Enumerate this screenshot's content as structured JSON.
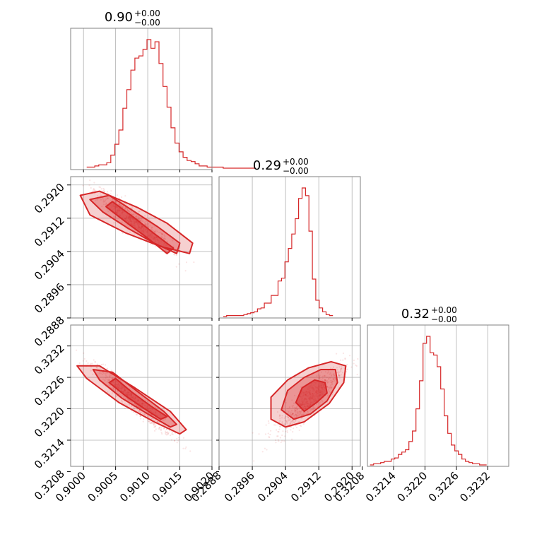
{
  "chart_data": {
    "type": "corner",
    "color": "#d62728",
    "grid": true,
    "parameters": [
      {
        "title_value": "0.90",
        "title_plus": "+0.00",
        "title_minus": "−0.00",
        "range": [
          0.8998,
          0.902
        ],
        "ticks": [
          0.9,
          0.9005,
          0.901,
          0.9015,
          0.902
        ],
        "tick_labels": [
          "0.9000",
          "0.9005",
          "0.9010",
          "0.9015",
          "0.9020"
        ],
        "histogram": {
          "bin_start": 0.90005,
          "bin_width": 6.25e-05,
          "counts": [
            1,
            1,
            2,
            3,
            3,
            5,
            12,
            22,
            35,
            55,
            72,
            90,
            101,
            103,
            109,
            118,
            110,
            116,
            96,
            75,
            56,
            37,
            23,
            15,
            10,
            7,
            6,
            4,
            2,
            2,
            1,
            1,
            1,
            1,
            0,
            0,
            0,
            0,
            0,
            0,
            0,
            0
          ]
        }
      },
      {
        "title_value": "0.29",
        "title_plus": "+0.00",
        "title_minus": "−0.00",
        "range": [
          0.2888,
          0.2922
        ],
        "ticks": [
          0.2888,
          0.2896,
          0.2904,
          0.2912,
          0.292
        ],
        "tick_labels": [
          "0.2888",
          "0.2896",
          "0.2904",
          "0.2912",
          "0.2920"
        ],
        "histogram": {
          "bin_start": 0.2889,
          "bin_width": 8.25e-05,
          "counts": [
            0,
            1,
            1,
            1,
            1,
            1,
            2,
            3,
            4,
            5,
            8,
            9,
            14,
            14,
            22,
            22,
            37,
            40,
            57,
            71,
            86,
            102,
            123,
            134,
            126,
            89,
            39,
            17,
            9,
            5,
            2,
            1
          ]
        }
      },
      {
        "title_value": "0.32",
        "title_plus": "+0.00",
        "title_minus": "−0.00",
        "range": [
          0.3209,
          0.3236
        ],
        "ticks": [
          0.3208,
          0.3214,
          0.322,
          0.3226,
          0.3232
        ],
        "tick_labels": [
          "0.3208",
          "0.3214",
          "0.3220",
          "0.3226",
          "0.3232"
        ],
        "histogram": {
          "bin_start": 0.32095,
          "bin_width": 6.75e-05,
          "counts": [
            0,
            1,
            1,
            2,
            3,
            3,
            5,
            6,
            9,
            11,
            13,
            20,
            29,
            48,
            72,
            104,
            110,
            96,
            94,
            84,
            65,
            42,
            27,
            17,
            12,
            9,
            5,
            3,
            2,
            1,
            1,
            0,
            0
          ]
        }
      }
    ],
    "pairs": [
      {
        "row": 1,
        "col": 0,
        "corr": -0.94,
        "mean": [
          0.90078,
          0.29116
        ],
        "sd": [
          0.00022,
          0.00028
        ],
        "contours": [
          [
            [
              0.9013,
              0.29035
            ],
            [
              0.901,
              0.29072
            ],
            [
              0.9007,
              0.29106
            ],
            [
              0.90035,
              0.29148
            ],
            [
              0.90045,
              0.2916
            ],
            [
              0.9008,
              0.2912
            ],
            [
              0.9011,
              0.29083
            ],
            [
              0.9014,
              0.29048
            ]
          ],
          [
            [
              0.90145,
              0.29035
            ],
            [
              0.9011,
              0.2906
            ],
            [
              0.9007,
              0.29095
            ],
            [
              0.9003,
              0.29135
            ],
            [
              0.9001,
              0.29165
            ],
            [
              0.9004,
              0.29175
            ],
            [
              0.9008,
              0.29135
            ],
            [
              0.90115,
              0.291
            ],
            [
              0.9015,
              0.2906
            ]
          ],
          [
            [
              0.90165,
              0.29035
            ],
            [
              0.9012,
              0.29052
            ],
            [
              0.90065,
              0.29085
            ],
            [
              0.9001,
              0.29128
            ],
            [
              0.89995,
              0.29175
            ],
            [
              0.90025,
              0.29185
            ],
            [
              0.90085,
              0.29145
            ],
            [
              0.9013,
              0.29108
            ],
            [
              0.9017,
              0.2906
            ]
          ]
        ]
      },
      {
        "row": 2,
        "col": 0,
        "corr": -0.96,
        "mean": [
          0.90078,
          0.32215
        ],
        "sd": [
          0.00022,
          0.00024
        ],
        "contours": [
          [
            [
              0.9012,
              0.3218
            ],
            [
              0.90095,
              0.322
            ],
            [
              0.90065,
              0.32225
            ],
            [
              0.9004,
              0.3225
            ],
            [
              0.9005,
              0.32258
            ],
            [
              0.90075,
              0.32232
            ],
            [
              0.90105,
              0.32205
            ],
            [
              0.9013,
              0.32185
            ]
          ],
          [
            [
              0.90135,
              0.32165
            ],
            [
              0.901,
              0.3219
            ],
            [
              0.9006,
              0.3222
            ],
            [
              0.90025,
              0.32255
            ],
            [
              0.90015,
              0.32275
            ],
            [
              0.90045,
              0.3227
            ],
            [
              0.90085,
              0.32232
            ],
            [
              0.90125,
              0.32195
            ],
            [
              0.90145,
              0.3217
            ]
          ],
          [
            [
              0.9015,
              0.32152
            ],
            [
              0.9011,
              0.32175
            ],
            [
              0.90055,
              0.32212
            ],
            [
              0.90005,
              0.32258
            ],
            [
              0.8999,
              0.32282
            ],
            [
              0.90025,
              0.32282
            ],
            [
              0.9008,
              0.3224
            ],
            [
              0.90135,
              0.32195
            ],
            [
              0.9016,
              0.3216
            ]
          ]
        ]
      },
      {
        "row": 2,
        "col": 1,
        "corr": 0.88,
        "mean": [
          0.29098,
          0.32218
        ],
        "sd": [
          0.0003,
          0.00024
        ],
        "contours": [
          [
            [
              0.29085,
              0.32195
            ],
            [
              0.29065,
              0.32212
            ],
            [
              0.2908,
              0.3224
            ],
            [
              0.2911,
              0.32255
            ],
            [
              0.29135,
              0.3225
            ],
            [
              0.2914,
              0.3223
            ],
            [
              0.29115,
              0.32212
            ]
          ],
          [
            [
              0.2906,
              0.3218
            ],
            [
              0.2903,
              0.32198
            ],
            [
              0.29045,
              0.32235
            ],
            [
              0.29085,
              0.3226
            ],
            [
              0.29125,
              0.32275
            ],
            [
              0.2916,
              0.32275
            ],
            [
              0.29165,
              0.3225
            ],
            [
              0.2914,
              0.32215
            ],
            [
              0.291,
              0.3219
            ]
          ],
          [
            [
              0.2904,
              0.32165
            ],
            [
              0.29005,
              0.3218
            ],
            [
              0.29005,
              0.32222
            ],
            [
              0.29045,
              0.32255
            ],
            [
              0.29095,
              0.32278
            ],
            [
              0.2915,
              0.3229
            ],
            [
              0.29185,
              0.32282
            ],
            [
              0.2918,
              0.3225
            ],
            [
              0.29145,
              0.3221
            ],
            [
              0.29085,
              0.32175
            ]
          ]
        ]
      }
    ]
  }
}
